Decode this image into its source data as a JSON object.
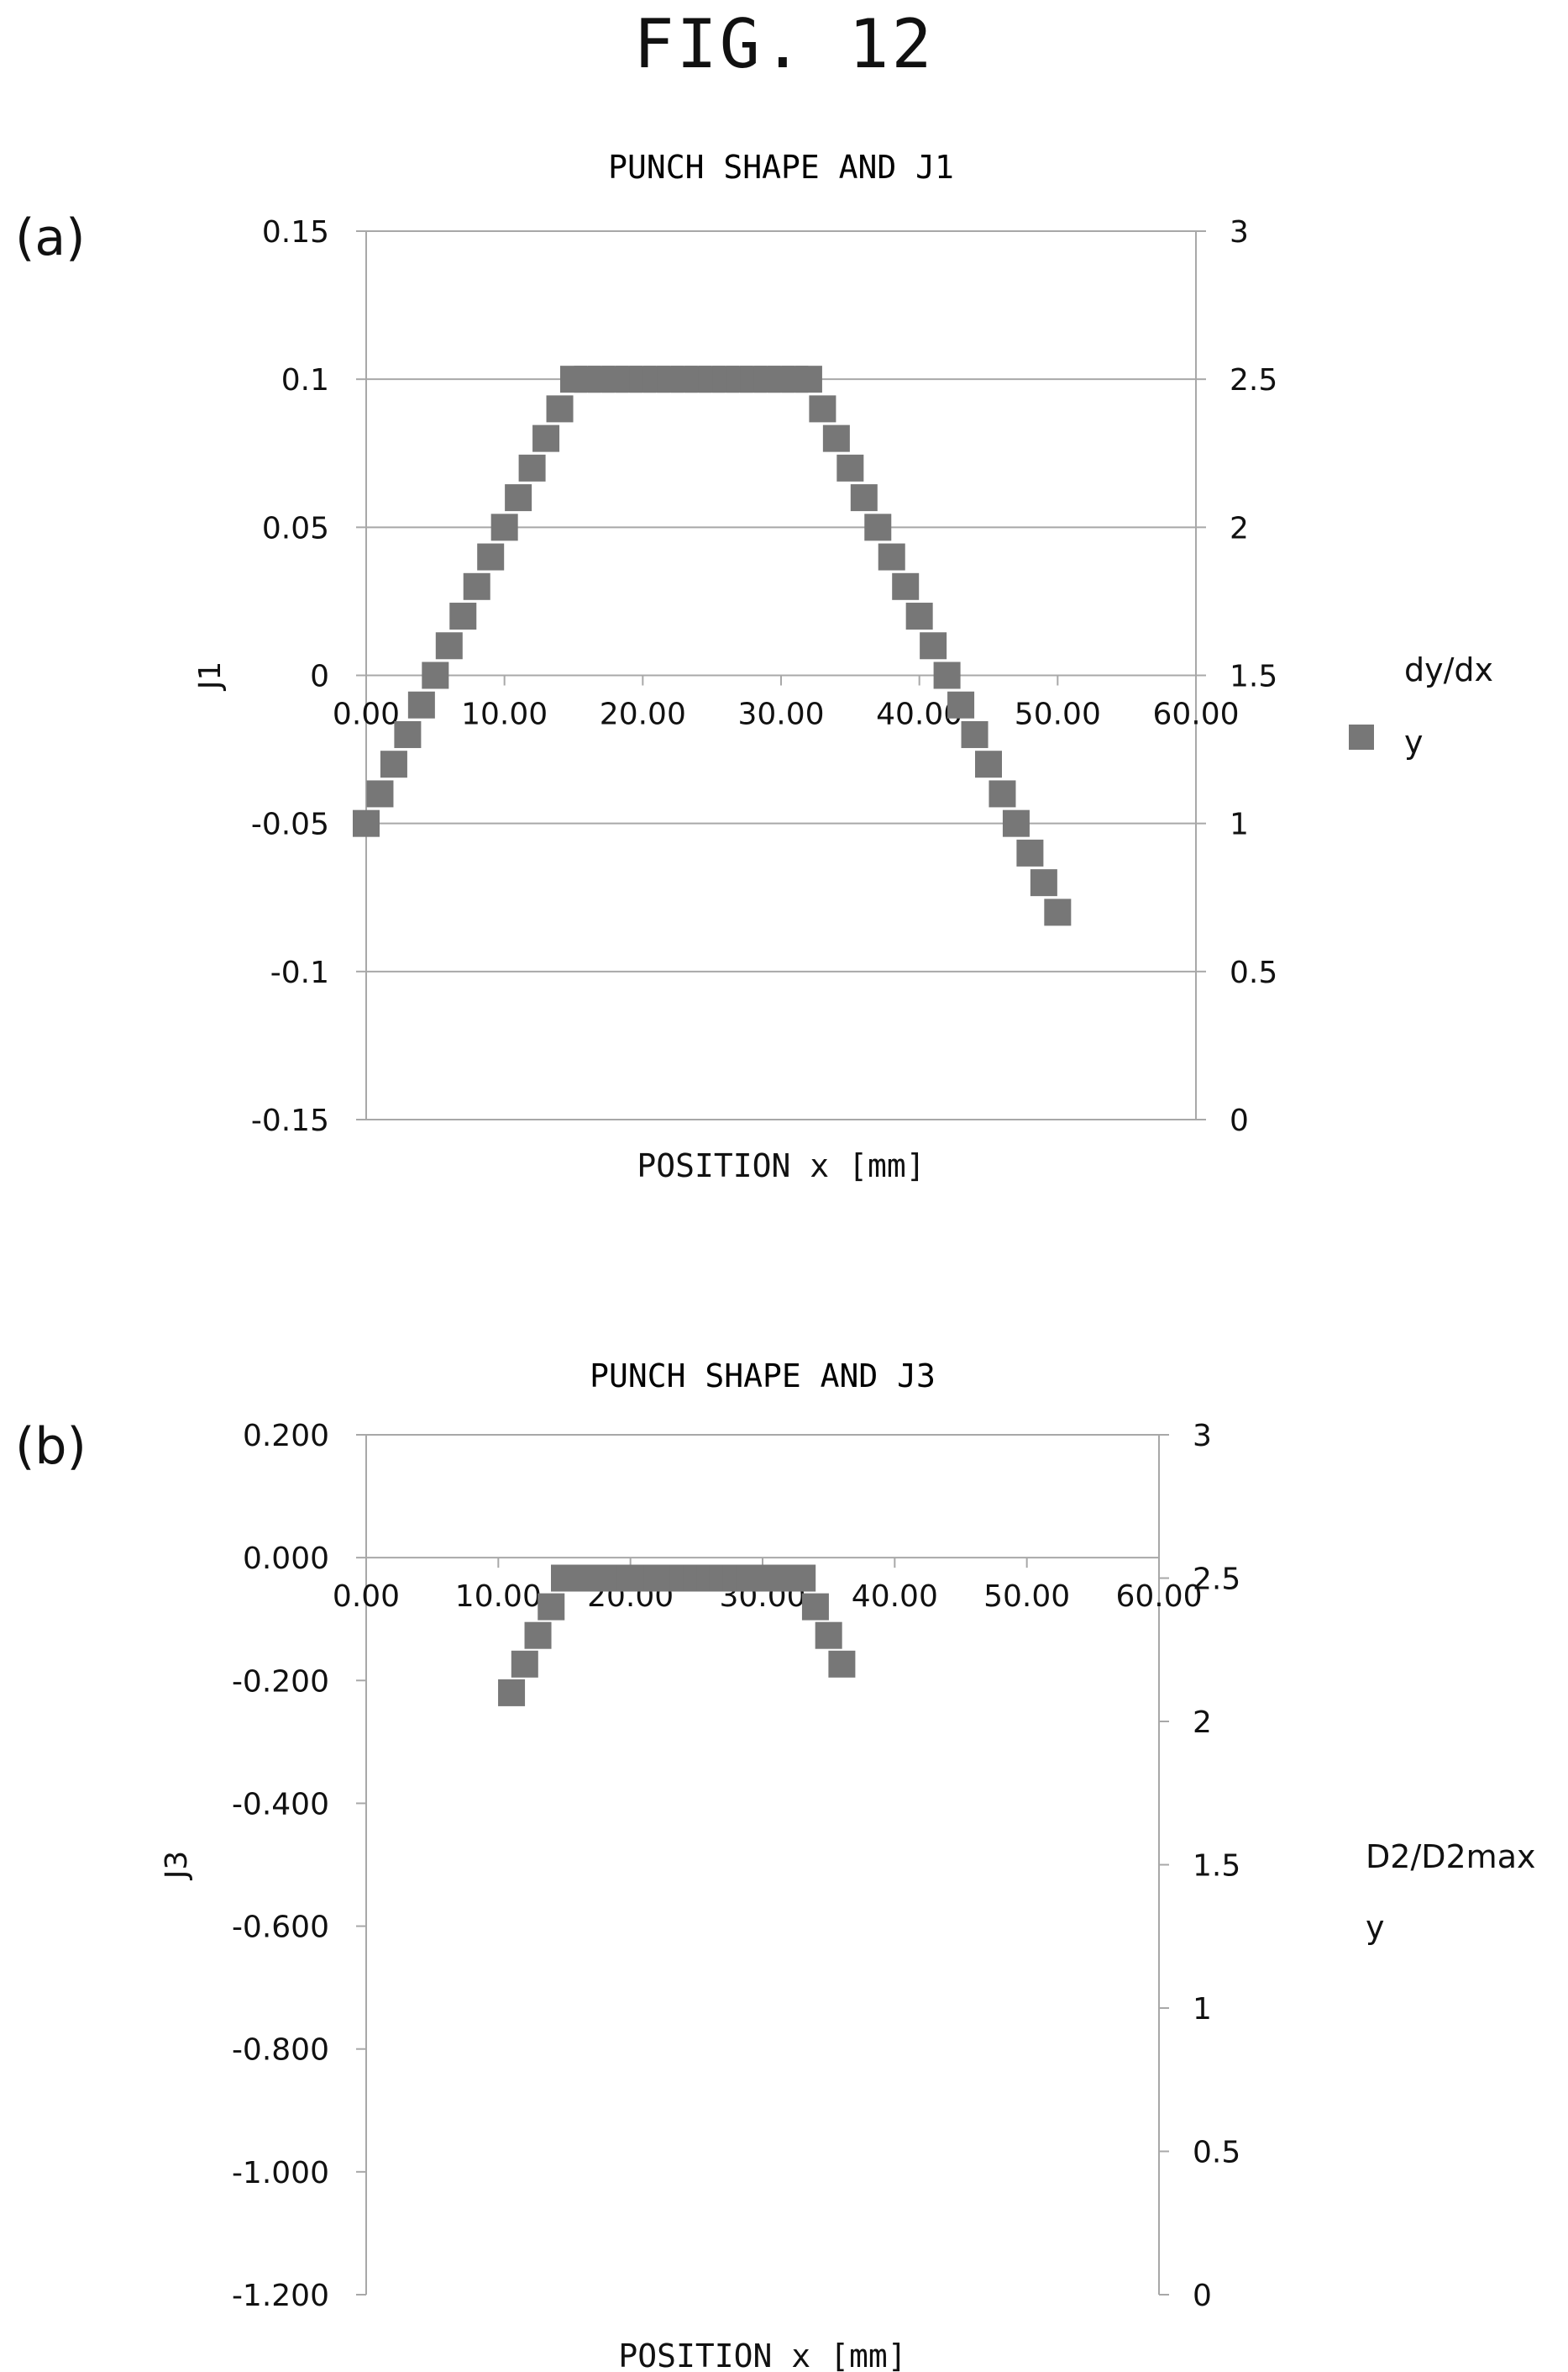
{
  "figure_title": "FIG. 12",
  "chart_data": [
    {
      "panel_label": "(a)",
      "type": "scatter",
      "title": "PUNCH SHAPE AND J1",
      "xlabel": "POSITION x [mm]",
      "ylabel": "J1",
      "xlim": [
        0,
        60
      ],
      "x_ticks": [
        "0.00",
        "10.00",
        "20.00",
        "30.00",
        "40.00",
        "50.00",
        "60.00"
      ],
      "ylim": [
        -0.15,
        0.15
      ],
      "y_ticks": [
        "-0.15",
        "-0.1",
        "-0.05",
        "0",
        "0.05",
        "0.1",
        "0.15"
      ],
      "y2lim": [
        0,
        3
      ],
      "y2_ticks": [
        "0",
        "0.5",
        "1",
        "1.5",
        "2",
        "2.5",
        "3"
      ],
      "grid": true,
      "legend": {
        "placement": "right",
        "entries": [
          "dy/dx",
          "y"
        ]
      },
      "series": [
        {
          "name": "y",
          "axis": "right",
          "color": "#777777",
          "marker": "square",
          "x": [
            0,
            1,
            2,
            3,
            4,
            5,
            6,
            7,
            8,
            9,
            10,
            11,
            12,
            13,
            14,
            15,
            16,
            17,
            18,
            19,
            20,
            21,
            22,
            23,
            24,
            25,
            26,
            27,
            28,
            29,
            30,
            31,
            32,
            33,
            34,
            35,
            36,
            37,
            38,
            39,
            40,
            41,
            42,
            43,
            44,
            45,
            46,
            47,
            48,
            49,
            50
          ],
          "y": [
            1.0,
            1.1,
            1.2,
            1.3,
            1.4,
            1.5,
            1.6,
            1.7,
            1.8,
            1.9,
            2.0,
            2.1,
            2.2,
            2.3,
            2.4,
            2.5,
            2.5,
            2.5,
            2.5,
            2.5,
            2.5,
            2.5,
            2.5,
            2.5,
            2.5,
            2.5,
            2.5,
            2.5,
            2.5,
            2.5,
            2.5,
            2.5,
            2.5,
            2.4,
            2.3,
            2.2,
            2.1,
            2.0,
            1.9,
            1.8,
            1.7,
            1.6,
            1.5,
            1.4,
            1.3,
            1.2,
            1.1,
            1.0,
            0.9,
            0.8,
            0.7
          ]
        }
      ]
    },
    {
      "panel_label": "(b)",
      "type": "scatter",
      "title": "PUNCH SHAPE AND J3",
      "xlabel": "POSITION x [mm]",
      "ylabel": "J3",
      "xlim": [
        0,
        60
      ],
      "x_ticks": [
        "0.00",
        "10.00",
        "20.00",
        "30.00",
        "40.00",
        "50.00",
        "60.00"
      ],
      "ylim": [
        -1.2,
        0.2
      ],
      "y_ticks": [
        "-1.200",
        "-1.000",
        "-0.800",
        "-0.600",
        "-0.400",
        "-0.200",
        "0.000",
        "0.200"
      ],
      "y2lim": [
        0,
        3
      ],
      "y2_ticks": [
        "0",
        "0.5",
        "1",
        "1.5",
        "2",
        "2.5",
        "3"
      ],
      "grid": false,
      "legend": {
        "placement": "right",
        "entries": [
          "D2/D2max",
          "y"
        ]
      },
      "series": [
        {
          "name": "y",
          "axis": "right",
          "color": "#777777",
          "marker": "square",
          "x": [
            11,
            12,
            13,
            14,
            15,
            16,
            17,
            18,
            19,
            20,
            21,
            22,
            23,
            24,
            25,
            26,
            27,
            28,
            29,
            30,
            31,
            32,
            33,
            34,
            35,
            36
          ],
          "y": [
            2.1,
            2.2,
            2.3,
            2.4,
            2.5,
            2.5,
            2.5,
            2.5,
            2.5,
            2.5,
            2.5,
            2.5,
            2.5,
            2.5,
            2.5,
            2.5,
            2.5,
            2.5,
            2.5,
            2.5,
            2.5,
            2.5,
            2.5,
            2.4,
            2.3,
            2.2
          ]
        }
      ]
    }
  ]
}
